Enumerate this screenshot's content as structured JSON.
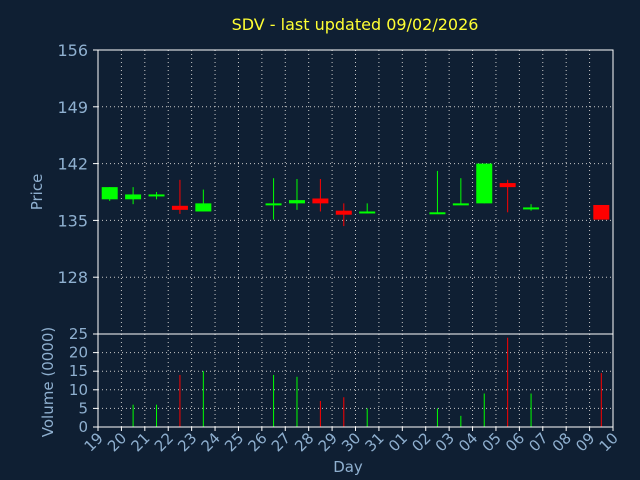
{
  "chart_data": [
    {
      "type": "candlestick",
      "title": "SDV - last updated 09/02/2026",
      "ylabel": "Price",
      "ylim": [
        121,
        156
      ],
      "yticks": [
        128,
        135,
        142,
        149,
        156
      ],
      "grid": true,
      "colors": {
        "up": "#00ff00",
        "down": "#ff0000",
        "background": "#0f1f33",
        "grid": "#c8c8c8",
        "text": "#8fb0d0",
        "title": "#ffff33"
      },
      "candles": [
        {
          "x": 0,
          "open": 137.6,
          "close": 139.1,
          "high": 139.1,
          "low": 137.4
        },
        {
          "x": 1,
          "open": 137.6,
          "close": 138.2,
          "high": 139.1,
          "low": 137.0
        },
        {
          "x": 2,
          "open": 138.0,
          "close": 138.2,
          "high": 138.5,
          "low": 137.6
        },
        {
          "x": 3,
          "open": 136.8,
          "close": 136.3,
          "high": 140.0,
          "low": 135.8
        },
        {
          "x": 4,
          "open": 136.1,
          "close": 137.1,
          "high": 138.8,
          "low": 136.1
        },
        {
          "x": 7,
          "open": 137.0,
          "close": 137.1,
          "high": 140.2,
          "low": 135.1
        },
        {
          "x": 8,
          "open": 137.1,
          "close": 137.5,
          "high": 140.1,
          "low": 136.3
        },
        {
          "x": 9,
          "open": 137.7,
          "close": 137.1,
          "high": 140.1,
          "low": 136.1
        },
        {
          "x": 10,
          "open": 136.2,
          "close": 135.7,
          "high": 137.1,
          "low": 134.3
        },
        {
          "x": 11,
          "open": 135.9,
          "close": 136.1,
          "high": 137.1,
          "low": 135.9
        },
        {
          "x": 14,
          "open": 135.9,
          "close": 136.0,
          "high": 141.1,
          "low": 135.9
        },
        {
          "x": 15,
          "open": 137.0,
          "close": 137.1,
          "high": 140.2,
          "low": 137.0
        },
        {
          "x": 16,
          "open": 137.1,
          "close": 142.0,
          "high": 142.0,
          "low": 137.1
        },
        {
          "x": 17,
          "open": 139.6,
          "close": 139.1,
          "high": 140.0,
          "low": 136.0
        },
        {
          "x": 18,
          "open": 136.4,
          "close": 136.6,
          "high": 137.0,
          "low": 136.2
        },
        {
          "x": 21,
          "open": 136.9,
          "close": 135.1,
          "high": 136.9,
          "low": 135.1
        }
      ]
    },
    {
      "type": "bar",
      "xlabel": "Day",
      "ylabel": "Volume (0000)",
      "ylim": [
        0,
        25
      ],
      "yticks": [
        0,
        5,
        10,
        15,
        20,
        25
      ],
      "categories": [
        "19",
        "20",
        "21",
        "22",
        "23",
        "24",
        "25",
        "26",
        "27",
        "28",
        "29",
        "30",
        "31",
        "01",
        "02",
        "03",
        "04",
        "05",
        "06",
        "07",
        "08",
        "09",
        "10"
      ],
      "values": [
        0,
        6,
        6,
        14,
        15,
        0,
        0,
        14,
        13.5,
        7,
        8,
        5,
        0,
        0,
        5,
        3,
        9,
        24,
        9,
        0,
        0,
        14.5,
        0
      ],
      "directions": [
        "up",
        "up",
        "up",
        "down",
        "up",
        "",
        "",
        "up",
        "up",
        "down",
        "down",
        "up",
        "",
        "",
        "up",
        "up",
        "up",
        "down",
        "up",
        "",
        "",
        "down",
        ""
      ]
    }
  ]
}
